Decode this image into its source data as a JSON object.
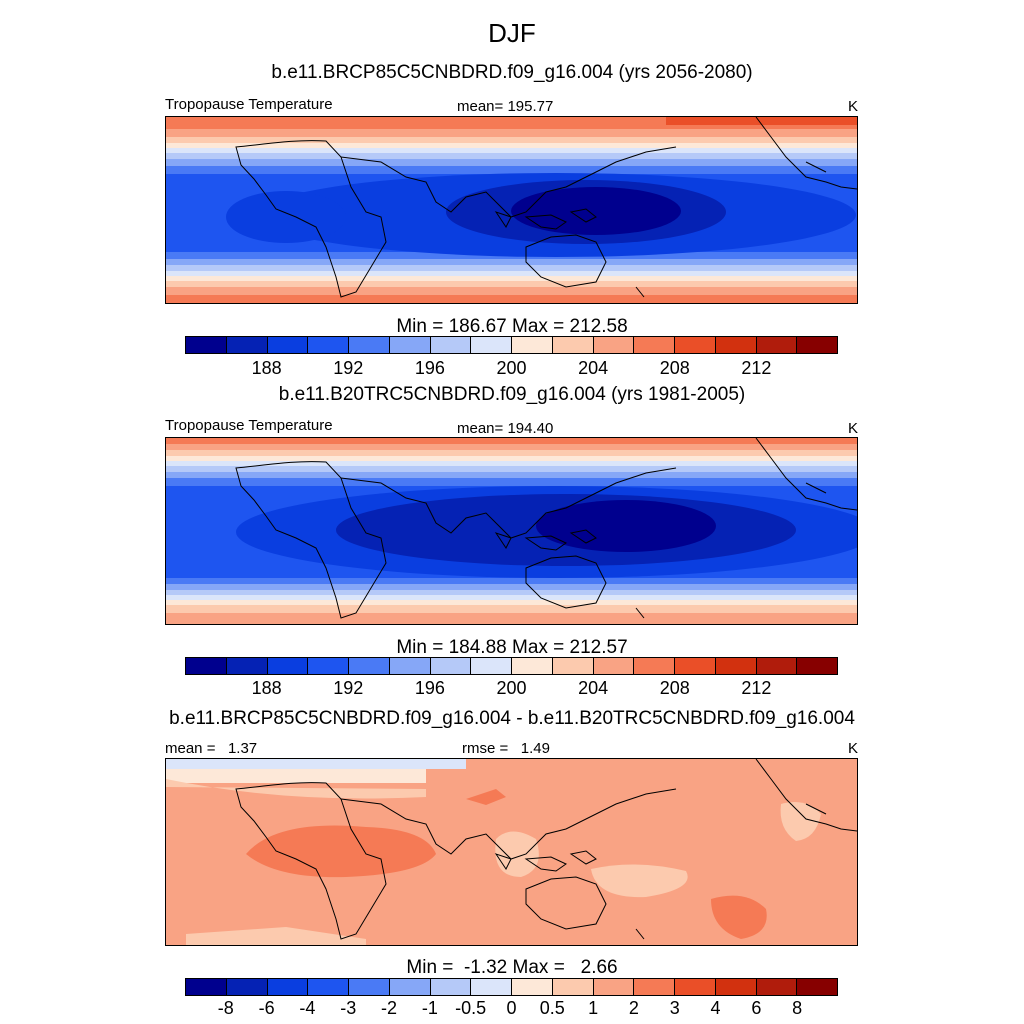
{
  "title": "DJF",
  "panels": [
    {
      "run_title": "b.e11.BRCP85C5CNBDRD.f09_g16.004 (yrs 2056-2080)",
      "left_label": "Tropopause Temperature",
      "center_label": "mean= 195.77",
      "right_label": "K",
      "minmax": "Min = 186.67 Max = 212.58",
      "colorbar_labels": [
        "188",
        "192",
        "196",
        "200",
        "204",
        "208",
        "212"
      ]
    },
    {
      "run_title": "b.e11.B20TRC5CNBDRD.f09_g16.004 (yrs 1981-2005)",
      "left_label": "Tropopause Temperature",
      "center_label": "mean= 194.40",
      "right_label": "K",
      "minmax": "Min = 184.88 Max = 212.57",
      "colorbar_labels": [
        "188",
        "192",
        "196",
        "200",
        "204",
        "208",
        "212"
      ]
    },
    {
      "run_title": "b.e11.BRCP85C5CNBDRD.f09_g16.004 - b.e11.B20TRC5CNBDRD.f09_g16.004",
      "left_label": "mean =   1.37",
      "center_label": "rmse =   1.49",
      "right_label": "K",
      "minmax": "Min =  -1.32 Max =   2.66",
      "colorbar_labels": [
        "-8",
        "-6",
        "-4",
        "-3",
        "-2",
        "-1",
        "-0.5",
        "0",
        "0.5",
        "1",
        "2",
        "3",
        "4",
        "6",
        "8"
      ]
    }
  ],
  "colors": {
    "temp_scale": [
      "#00008e",
      "#0522b4",
      "#0a3ee0",
      "#1e55f0",
      "#4a7af5",
      "#86a7f7",
      "#b5c9f8",
      "#dbe5fa",
      "#fde8d8",
      "#fccaae",
      "#f9a384",
      "#f57a55",
      "#ea4f28",
      "#d2310f",
      "#b01c0c",
      "#870000"
    ],
    "diff_scale": [
      "#00008e",
      "#0522b4",
      "#0a3ee0",
      "#1e55f0",
      "#4a7af5",
      "#86a7f7",
      "#b5c9f8",
      "#dbe5fa",
      "#fde8d8",
      "#fccaae",
      "#f9a384",
      "#f57a55",
      "#ea4f28",
      "#d2310f",
      "#b01c0c",
      "#870000"
    ]
  }
}
